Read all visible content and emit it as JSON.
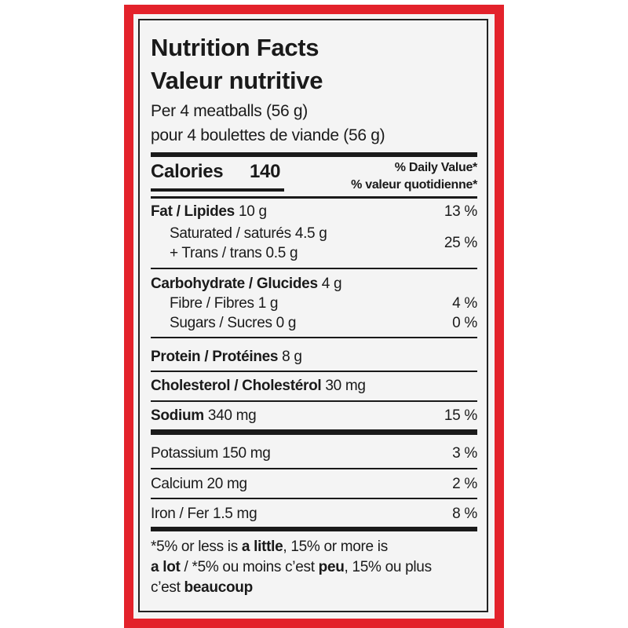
{
  "label": {
    "title_en": "Nutrition Facts",
    "title_fr": "Valeur nutritive",
    "serving_en": "Per 4 meatballs (56 g)",
    "serving_fr": "pour 4 boulettes de viande (56 g)",
    "calories": {
      "label": "Calories",
      "value": "140"
    },
    "dv_en": "% Daily Value*",
    "dv_fr": "% valeur quotidienne*",
    "fat": {
      "name": "Fat / Lipides",
      "amount": "10 g",
      "dv": "13 %"
    },
    "saturated": "Saturated / saturés 4.5 g",
    "trans": "+ Trans / trans 0.5 g",
    "sat_trans_dv": "25 %",
    "carbohydrate": {
      "name": "Carbohydrate / Glucides",
      "amount": "4 g"
    },
    "fibre": {
      "name": "Fibre / Fibres 1 g",
      "dv": "4 %"
    },
    "sugars": {
      "name": "Sugars / Sucres 0 g",
      "dv": "0 %"
    },
    "protein": {
      "name": "Protein / Protéines",
      "amount": "8 g"
    },
    "cholesterol": {
      "name": "Cholesterol / Cholestérol",
      "amount": "30 mg"
    },
    "sodium": {
      "name": "Sodium",
      "amount": "340 mg",
      "dv": "15 %"
    },
    "potassium": {
      "name": "Potassium 150 mg",
      "dv": "3 %"
    },
    "calcium": {
      "name": "Calcium 20 mg",
      "dv": "2 %"
    },
    "iron": {
      "name": "Iron / Fer 1.5 mg",
      "dv": "8 %"
    },
    "footnote": [
      "*5% or less is ",
      "a little",
      ", 15% or more is ",
      "a lot",
      " / *5% ou moins c’est ",
      "peu",
      ", 15% ou plus c’est ",
      "beaucoup"
    ]
  }
}
